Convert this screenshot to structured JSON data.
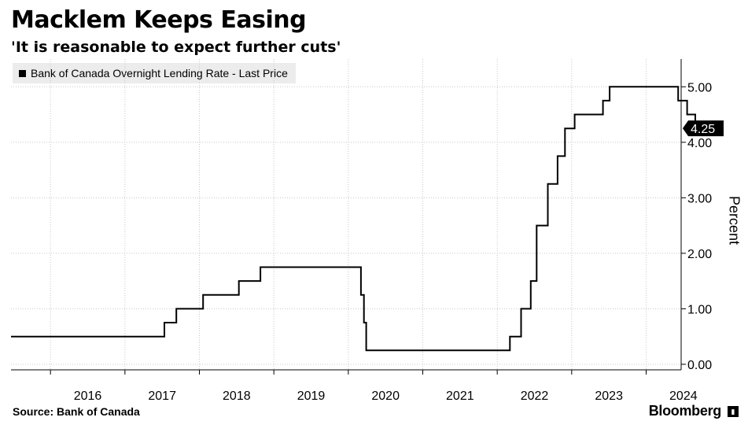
{
  "header": {
    "title": "Macklem Keeps Easing",
    "subtitle": "'It is reasonable to expect further cuts'"
  },
  "footer": {
    "source": "Source:  Bank of Canada",
    "brand": "Bloomberg"
  },
  "chart_data": {
    "type": "line",
    "title": "Macklem Keeps Easing",
    "subtitle": "'It is reasonable to expect further cuts'",
    "xlabel": "",
    "ylabel": "Percent",
    "xlim": [
      2015.47,
      2024.47
    ],
    "ylim": [
      -0.1,
      5.5
    ],
    "y_ticks": [
      0,
      1,
      2,
      3,
      4,
      5
    ],
    "y_tick_labels": [
      "0.00",
      "1.00",
      "2.00",
      "3.00",
      "4.00",
      "5.00"
    ],
    "x_ticks": [
      2016,
      2017,
      2018,
      2019,
      2020,
      2021,
      2022,
      2023,
      2024
    ],
    "x_tick_labels": [
      "2016",
      "2017",
      "2018",
      "2019",
      "2020",
      "2021",
      "2022",
      "2023",
      "2024"
    ],
    "y_axis_position": "right",
    "grid": true,
    "legend_position": "top-left",
    "last_value_label": "4.25",
    "series": [
      {
        "name": "Bank of Canada Overnight Lending Rate - Last Price",
        "color": "#000000",
        "step": true,
        "points": [
          [
            2015.47,
            0.5
          ],
          [
            2017.53,
            0.5
          ],
          [
            2017.53,
            0.75
          ],
          [
            2017.69,
            0.75
          ],
          [
            2017.69,
            1.0
          ],
          [
            2018.05,
            1.0
          ],
          [
            2018.05,
            1.25
          ],
          [
            2018.53,
            1.25
          ],
          [
            2018.53,
            1.5
          ],
          [
            2018.82,
            1.5
          ],
          [
            2018.82,
            1.75
          ],
          [
            2020.17,
            1.75
          ],
          [
            2020.17,
            1.25
          ],
          [
            2020.21,
            1.25
          ],
          [
            2020.21,
            0.75
          ],
          [
            2020.24,
            0.75
          ],
          [
            2020.24,
            0.25
          ],
          [
            2022.17,
            0.25
          ],
          [
            2022.17,
            0.5
          ],
          [
            2022.32,
            0.5
          ],
          [
            2022.32,
            1.0
          ],
          [
            2022.45,
            1.0
          ],
          [
            2022.45,
            1.5
          ],
          [
            2022.53,
            1.5
          ],
          [
            2022.53,
            2.5
          ],
          [
            2022.68,
            2.5
          ],
          [
            2022.68,
            3.25
          ],
          [
            2022.81,
            3.25
          ],
          [
            2022.81,
            3.75
          ],
          [
            2022.91,
            3.75
          ],
          [
            2022.91,
            4.25
          ],
          [
            2023.04,
            4.25
          ],
          [
            2023.04,
            4.5
          ],
          [
            2023.42,
            4.5
          ],
          [
            2023.42,
            4.75
          ],
          [
            2023.51,
            4.75
          ],
          [
            2023.51,
            5.0
          ],
          [
            2024.43,
            5.0
          ],
          [
            2024.43,
            4.75
          ],
          [
            2024.55,
            4.75
          ],
          [
            2024.55,
            4.5
          ],
          [
            2024.66,
            4.5
          ],
          [
            2024.66,
            4.25
          ]
        ]
      }
    ]
  }
}
